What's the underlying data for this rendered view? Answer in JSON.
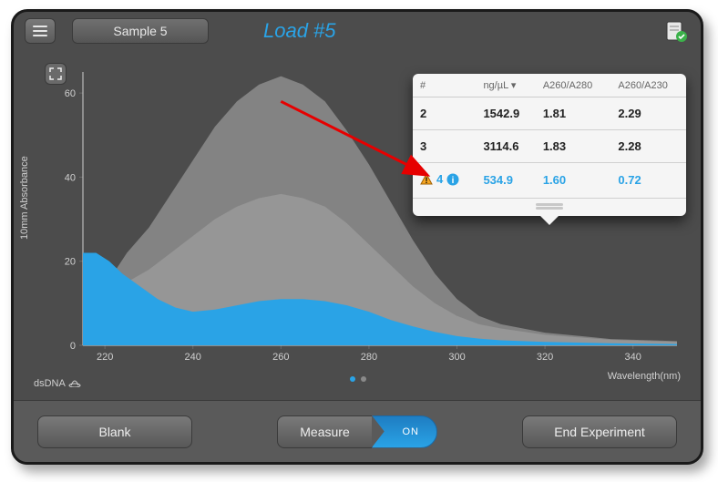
{
  "header": {
    "sample_label": "Sample 5",
    "load_label": "Load #5"
  },
  "chart": {
    "type": "area",
    "y_label": "10mm Absorbance",
    "x_label": "Wavelength(nm)",
    "sample_type": "dsDNA",
    "x_ticks": [
      220,
      240,
      260,
      280,
      300,
      320,
      340
    ],
    "y_ticks": [
      0,
      20,
      40,
      60
    ],
    "xlim": [
      215,
      350
    ],
    "ylim": [
      0,
      65
    ],
    "background_color": "#4c4c4c",
    "grid_color": "#6a6a6a",
    "axis_color": "#d0d0d0",
    "tick_fontsize": 11,
    "series": [
      {
        "name": "spectrum-back-2",
        "fill": "#8a8a8a",
        "opacity": 0.9,
        "points": [
          [
            215,
            8
          ],
          [
            220,
            14
          ],
          [
            225,
            22
          ],
          [
            230,
            28
          ],
          [
            235,
            36
          ],
          [
            240,
            44
          ],
          [
            245,
            52
          ],
          [
            250,
            58
          ],
          [
            255,
            62
          ],
          [
            260,
            64
          ],
          [
            265,
            62
          ],
          [
            270,
            58
          ],
          [
            275,
            51
          ],
          [
            280,
            43
          ],
          [
            285,
            34
          ],
          [
            290,
            25
          ],
          [
            295,
            17
          ],
          [
            300,
            11
          ],
          [
            305,
            7
          ],
          [
            310,
            5
          ],
          [
            320,
            3
          ],
          [
            335,
            1.5
          ],
          [
            350,
            1
          ]
        ]
      },
      {
        "name": "spectrum-back-1",
        "fill": "#9a9a9a",
        "opacity": 0.85,
        "points": [
          [
            215,
            7
          ],
          [
            220,
            11
          ],
          [
            225,
            15
          ],
          [
            230,
            18
          ],
          [
            235,
            22
          ],
          [
            240,
            26
          ],
          [
            245,
            30
          ],
          [
            250,
            33
          ],
          [
            255,
            35
          ],
          [
            260,
            36
          ],
          [
            265,
            35
          ],
          [
            270,
            33
          ],
          [
            275,
            29
          ],
          [
            280,
            24
          ],
          [
            285,
            19
          ],
          [
            290,
            14
          ],
          [
            295,
            10
          ],
          [
            300,
            7
          ],
          [
            305,
            5
          ],
          [
            310,
            4
          ],
          [
            320,
            2.5
          ],
          [
            335,
            1.3
          ],
          [
            350,
            0.8
          ]
        ]
      },
      {
        "name": "spectrum-current",
        "fill": "#2aa3e6",
        "opacity": 1.0,
        "points": [
          [
            215,
            22
          ],
          [
            218,
            22
          ],
          [
            221,
            20
          ],
          [
            224,
            17
          ],
          [
            228,
            14
          ],
          [
            232,
            11
          ],
          [
            236,
            9
          ],
          [
            240,
            8
          ],
          [
            245,
            8.5
          ],
          [
            250,
            9.5
          ],
          [
            255,
            10.5
          ],
          [
            260,
            11
          ],
          [
            265,
            11
          ],
          [
            270,
            10.5
          ],
          [
            275,
            9.5
          ],
          [
            280,
            8
          ],
          [
            285,
            6
          ],
          [
            290,
            4.5
          ],
          [
            295,
            3.2
          ],
          [
            300,
            2.2
          ],
          [
            305,
            1.6
          ],
          [
            310,
            1.2
          ],
          [
            320,
            0.8
          ],
          [
            335,
            0.5
          ],
          [
            350,
            0.3
          ]
        ]
      }
    ],
    "arrow": {
      "from_x": 260,
      "from_y": 58,
      "to_x": 320,
      "to_y": 32,
      "color": "#e60000"
    },
    "pager": {
      "total": 2,
      "active_index": 0
    }
  },
  "results": {
    "columns": [
      "#",
      "ng/µL",
      "A260/A280",
      "A260/A230"
    ],
    "sort_indicator_col": 1,
    "rows": [
      {
        "num": "2",
        "conc": "1542.9",
        "r280": "1.81",
        "r230": "2.29",
        "warn": false
      },
      {
        "num": "3",
        "conc": "3114.6",
        "r280": "1.83",
        "r230": "2.28",
        "warn": false
      },
      {
        "num": "4",
        "conc": "534.9",
        "r280": "1.60",
        "r230": "0.72",
        "warn": true
      }
    ],
    "highlight_color": "#2aa3e6",
    "warn_triangle_color": "#f5a623",
    "info_icon_color": "#2aa3e6"
  },
  "actions": {
    "blank_label": "Blank",
    "measure_label": "Measure",
    "measure_toggle_label": "ON",
    "end_label": "End Experiment"
  }
}
